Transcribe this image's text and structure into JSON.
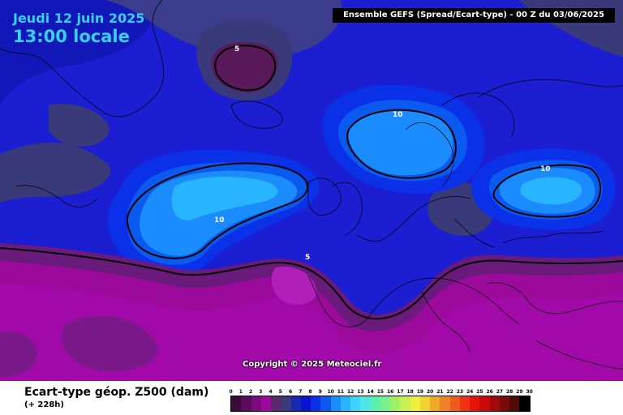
{
  "header": {
    "date": "Jeudi 12 juin 2025",
    "time": "13:00 locale",
    "run_banner": "Ensemble GEFS  (Spread/Ecart-type) - 00 Z du 03/06/2025"
  },
  "map": {
    "copyright": "Copyright © 2025 Meteociel.fr",
    "contour_labels": [
      "5",
      "10",
      "10",
      "10",
      "5"
    ]
  },
  "footer": {
    "parameter": "Ecart-type géop. Z500 (dam)",
    "lead_time": "(+ 228h)"
  },
  "legend": {
    "ticks": [
      "0",
      "1",
      "2",
      "3",
      "4",
      "5",
      "6",
      "7",
      "8",
      "9",
      "10",
      "11",
      "12",
      "13",
      "14",
      "15",
      "16",
      "17",
      "18",
      "19",
      "20",
      "21",
      "22",
      "23",
      "24",
      "25",
      "26",
      "27",
      "28",
      "29",
      "30"
    ],
    "colors": [
      "#3b0a3a",
      "#5c0a5c",
      "#7d0a7d",
      "#9c0a9c",
      "#5a2a6a",
      "#3a3a7a",
      "#1a2ab0",
      "#0a14d0",
      "#0a30e8",
      "#0a5af0",
      "#1a8cff",
      "#28b4ff",
      "#3cd4ff",
      "#50e6e6",
      "#5af0b0",
      "#78f08c",
      "#a0f064",
      "#c8f050",
      "#f0f03c",
      "#f0d232",
      "#f0aa28",
      "#f08228",
      "#f05a1e",
      "#f03214",
      "#e6140a",
      "#c80a0a",
      "#a00a0a",
      "#780a0a",
      "#500a0a",
      "#000000"
    ]
  }
}
